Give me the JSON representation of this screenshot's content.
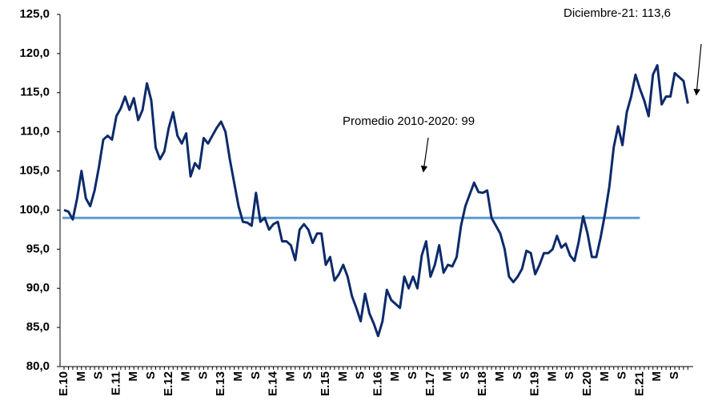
{
  "chart_data": {
    "type": "line",
    "categories": [
      "E.10",
      null,
      null,
      null,
      "M",
      null,
      null,
      null,
      "S",
      null,
      null,
      null,
      "E.11",
      null,
      null,
      null,
      "M",
      null,
      null,
      null,
      "S",
      null,
      null,
      null,
      "E.12",
      null,
      null,
      null,
      "M",
      null,
      null,
      null,
      "S",
      null,
      null,
      null,
      "E.13",
      null,
      null,
      null,
      "M",
      null,
      null,
      null,
      "S",
      null,
      null,
      null,
      "E.14",
      null,
      null,
      null,
      "M",
      null,
      null,
      null,
      "S",
      null,
      null,
      null,
      "E.15",
      null,
      null,
      null,
      "M",
      null,
      null,
      null,
      "S",
      null,
      null,
      null,
      "E.16",
      null,
      null,
      null,
      "M",
      null,
      null,
      null,
      "S",
      null,
      null,
      null,
      "E.17",
      null,
      null,
      null,
      "M",
      null,
      null,
      null,
      "S",
      null,
      null,
      null,
      "E.18",
      null,
      null,
      null,
      "M",
      null,
      null,
      null,
      "S",
      null,
      null,
      null,
      "E.19",
      null,
      null,
      null,
      "M",
      null,
      null,
      null,
      "S",
      null,
      null,
      null,
      "E.20",
      null,
      null,
      null,
      "M",
      null,
      null,
      null,
      "S",
      null,
      null,
      null,
      "E.21",
      null,
      null,
      null,
      "M",
      null,
      null,
      null,
      "S",
      null,
      null,
      null
    ],
    "series": [
      {
        "color": "#0d2a6b",
        "values": [
          100.0,
          99.8,
          98.8,
          101.5,
          105.0,
          101.5,
          100.5,
          102.5,
          105.5,
          109.0,
          109.5,
          109.0,
          112.0,
          113.0,
          114.5,
          112.8,
          114.3,
          111.5,
          112.8,
          116.2,
          114.0,
          108.0,
          106.5,
          107.5,
          110.5,
          112.5,
          109.5,
          108.5,
          109.8,
          104.3,
          106.0,
          105.3,
          109.2,
          108.5,
          109.5,
          110.5,
          111.3,
          110.0,
          106.5,
          103.5,
          100.5,
          98.5,
          98.4,
          98.0,
          102.2,
          98.5,
          99.0,
          97.5,
          98.2,
          98.5,
          96.0,
          96.0,
          95.5,
          93.6,
          97.5,
          98.2,
          97.5,
          95.8,
          97.0,
          97.0,
          93.0,
          94.0,
          91.0,
          91.8,
          93.0,
          91.5,
          89.0,
          87.5,
          85.8,
          89.3,
          86.8,
          85.5,
          83.9,
          85.8,
          89.8,
          88.5,
          88.0,
          87.5,
          91.5,
          90.0,
          91.5,
          90.0,
          94.2,
          96.0,
          91.5,
          93.0,
          95.5,
          92.0,
          93.0,
          92.8,
          94.0,
          98.0,
          100.5,
          102.0,
          103.5,
          102.3,
          102.2,
          102.5,
          99.0,
          98.0,
          97.0,
          95.0,
          91.5,
          90.8,
          91.5,
          92.5,
          94.8,
          94.5,
          91.8,
          93.0,
          94.5,
          94.5,
          95.0,
          96.7,
          95.2,
          95.7,
          94.2,
          93.5,
          96.0,
          99.2,
          97.0,
          94.0,
          94.0,
          96.5,
          99.5,
          103.0,
          108.0,
          110.7,
          108.3,
          112.5,
          114.5,
          117.3,
          115.5,
          114.0,
          112.0,
          117.3,
          118.5,
          113.5,
          114.5,
          114.5,
          117.5,
          117.0,
          116.5,
          113.6
        ]
      }
    ],
    "reference_line": {
      "value": 99,
      "label": "Promedio 2010-2020: 99",
      "color": "#5b9bd5"
    },
    "annotations": [
      "Diciembre-21: 113,6"
    ],
    "ylim": [
      80,
      125
    ],
    "yticks": [
      {
        "value": 80,
        "label": "80,0"
      },
      {
        "value": 85,
        "label": "85,0"
      },
      {
        "value": 90,
        "label": "90,0"
      },
      {
        "value": 95,
        "label": "95,0"
      },
      {
        "value": 100,
        "label": "100,0"
      },
      {
        "value": 105,
        "label": "105,0"
      },
      {
        "value": 110,
        "label": "110,0"
      },
      {
        "value": 115,
        "label": "115,0"
      },
      {
        "value": 120,
        "label": "120,0"
      },
      {
        "value": 125,
        "label": "125,0"
      }
    ],
    "grid": false
  }
}
